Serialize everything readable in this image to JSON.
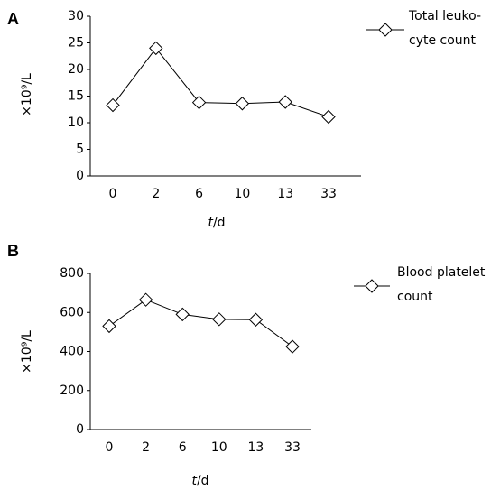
{
  "chart_data": [
    {
      "type": "line",
      "panel_label": "A",
      "categories": [
        "0",
        "2",
        "6",
        "10",
        "13",
        "33"
      ],
      "series": [
        {
          "name": [
            "Total leuko-",
            "cyte count"
          ],
          "color": "#000000",
          "values": [
            13.3,
            24,
            13.8,
            13.6,
            13.9,
            11.1
          ]
        }
      ],
      "ylim": [
        0,
        30
      ],
      "yticks": [
        0,
        5,
        10,
        15,
        20,
        25,
        30
      ],
      "xlabel": [
        "t",
        "/d"
      ],
      "ylabel": "×10⁹/L"
    },
    {
      "type": "line",
      "panel_label": "B",
      "categories": [
        "0",
        "2",
        "6",
        "10",
        "13",
        "33"
      ],
      "series": [
        {
          "name": [
            "Blood platelet",
            "count"
          ],
          "color": "#000000",
          "values": [
            530,
            665,
            590,
            565,
            563,
            425
          ]
        }
      ],
      "ylim": [
        0,
        800
      ],
      "yticks": [
        0,
        200,
        400,
        600,
        800
      ],
      "xlabel": [
        "t",
        "/d"
      ],
      "ylabel": "×10⁹/L"
    }
  ]
}
